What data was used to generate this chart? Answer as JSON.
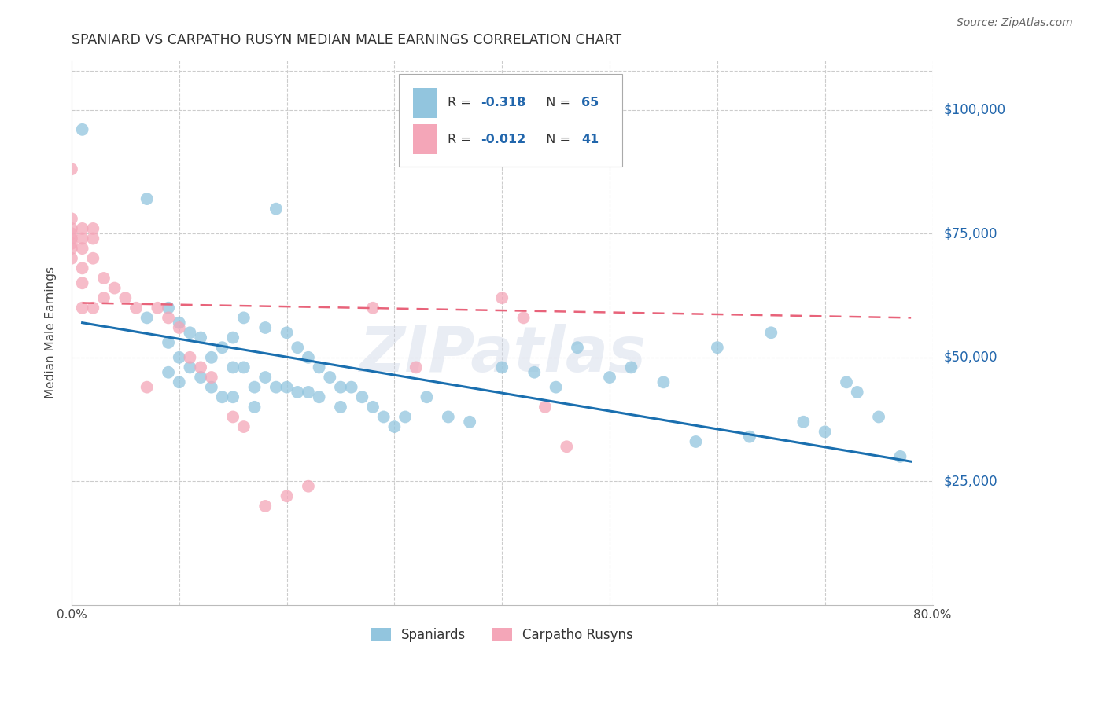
{
  "title": "SPANIARD VS CARPATHO RUSYN MEDIAN MALE EARNINGS CORRELATION CHART",
  "source": "Source: ZipAtlas.com",
  "ylabel": "Median Male Earnings",
  "watermark": "ZIPatlas",
  "legend_label1": "Spaniards",
  "legend_label2": "Carpatho Rusyns",
  "xlim": [
    0.0,
    0.8
  ],
  "ylim": [
    0,
    110000
  ],
  "yticks": [
    25000,
    50000,
    75000,
    100000
  ],
  "ytick_labels": [
    "$25,000",
    "$50,000",
    "$75,000",
    "$100,000"
  ],
  "xticks": [
    0.0,
    0.1,
    0.2,
    0.3,
    0.4,
    0.5,
    0.6,
    0.7,
    0.8
  ],
  "xtick_labels": [
    "0.0%",
    "",
    "",
    "",
    "",
    "",
    "",
    "",
    "80.0%"
  ],
  "color_blue": "#92c5de",
  "color_pink": "#f4a6b8",
  "color_blue_line": "#1a6faf",
  "color_pink_line": "#e8637a",
  "background_color": "#ffffff",
  "spaniards_x": [
    0.01,
    0.07,
    0.07,
    0.09,
    0.09,
    0.09,
    0.1,
    0.1,
    0.1,
    0.11,
    0.11,
    0.12,
    0.12,
    0.13,
    0.13,
    0.14,
    0.14,
    0.15,
    0.15,
    0.15,
    0.16,
    0.16,
    0.17,
    0.17,
    0.18,
    0.18,
    0.19,
    0.2,
    0.2,
    0.21,
    0.21,
    0.22,
    0.22,
    0.23,
    0.23,
    0.24,
    0.25,
    0.25,
    0.26,
    0.27,
    0.28,
    0.29,
    0.3,
    0.31,
    0.33,
    0.35,
    0.37,
    0.4,
    0.43,
    0.45,
    0.47,
    0.5,
    0.52,
    0.55,
    0.58,
    0.6,
    0.63,
    0.65,
    0.68,
    0.7,
    0.72,
    0.73,
    0.75,
    0.77,
    0.19
  ],
  "spaniards_y": [
    96000,
    82000,
    58000,
    60000,
    53000,
    47000,
    57000,
    50000,
    45000,
    55000,
    48000,
    54000,
    46000,
    50000,
    44000,
    52000,
    42000,
    54000,
    48000,
    42000,
    58000,
    48000,
    44000,
    40000,
    56000,
    46000,
    44000,
    55000,
    44000,
    52000,
    43000,
    50000,
    43000,
    48000,
    42000,
    46000,
    44000,
    40000,
    44000,
    42000,
    40000,
    38000,
    36000,
    38000,
    42000,
    38000,
    37000,
    48000,
    47000,
    44000,
    52000,
    46000,
    48000,
    45000,
    33000,
    52000,
    34000,
    55000,
    37000,
    35000,
    45000,
    43000,
    38000,
    30000,
    80000
  ],
  "rusyns_x": [
    0.0,
    0.0,
    0.0,
    0.0,
    0.0,
    0.0,
    0.0,
    0.0,
    0.01,
    0.01,
    0.01,
    0.01,
    0.01,
    0.01,
    0.02,
    0.02,
    0.02,
    0.02,
    0.03,
    0.03,
    0.04,
    0.05,
    0.06,
    0.07,
    0.08,
    0.09,
    0.1,
    0.11,
    0.12,
    0.13,
    0.15,
    0.16,
    0.18,
    0.2,
    0.22,
    0.28,
    0.32,
    0.4,
    0.42,
    0.44,
    0.46
  ],
  "rusyns_y": [
    88000,
    78000,
    76000,
    75000,
    74000,
    73000,
    72000,
    70000,
    76000,
    74000,
    72000,
    68000,
    65000,
    60000,
    76000,
    74000,
    70000,
    60000,
    66000,
    62000,
    64000,
    62000,
    60000,
    44000,
    60000,
    58000,
    56000,
    50000,
    48000,
    46000,
    38000,
    36000,
    20000,
    22000,
    24000,
    60000,
    48000,
    62000,
    58000,
    40000,
    32000
  ],
  "blue_line_x": [
    0.01,
    0.78
  ],
  "blue_line_y": [
    57000,
    29000
  ],
  "pink_line_x": [
    0.01,
    0.78
  ],
  "pink_line_y": [
    61000,
    58000
  ]
}
